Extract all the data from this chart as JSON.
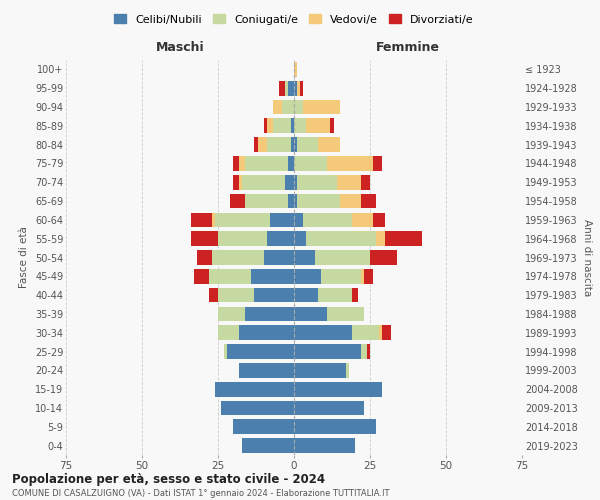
{
  "age_groups": [
    "0-4",
    "5-9",
    "10-14",
    "15-19",
    "20-24",
    "25-29",
    "30-34",
    "35-39",
    "40-44",
    "45-49",
    "50-54",
    "55-59",
    "60-64",
    "65-69",
    "70-74",
    "75-79",
    "80-84",
    "85-89",
    "90-94",
    "95-99",
    "100+"
  ],
  "birth_years": [
    "2019-2023",
    "2014-2018",
    "2009-2013",
    "2004-2008",
    "1999-2003",
    "1994-1998",
    "1989-1993",
    "1984-1988",
    "1979-1983",
    "1974-1978",
    "1969-1973",
    "1964-1968",
    "1959-1963",
    "1954-1958",
    "1949-1953",
    "1944-1948",
    "1939-1943",
    "1934-1938",
    "1929-1933",
    "1924-1928",
    "≤ 1923"
  ],
  "maschi": {
    "celibe": [
      17,
      20,
      24,
      26,
      18,
      22,
      18,
      16,
      13,
      14,
      10,
      9,
      8,
      2,
      3,
      2,
      1,
      1,
      0,
      2,
      0
    ],
    "coniugato": [
      0,
      0,
      0,
      0,
      0,
      1,
      7,
      9,
      12,
      14,
      17,
      16,
      18,
      14,
      14,
      14,
      8,
      6,
      4,
      1,
      0
    ],
    "vedovo": [
      0,
      0,
      0,
      0,
      0,
      0,
      0,
      0,
      0,
      0,
      0,
      0,
      1,
      0,
      1,
      2,
      3,
      2,
      3,
      0,
      0
    ],
    "divorziato": [
      0,
      0,
      0,
      0,
      0,
      0,
      0,
      0,
      3,
      5,
      5,
      9,
      7,
      5,
      2,
      2,
      1,
      1,
      0,
      2,
      0
    ]
  },
  "femmine": {
    "nubile": [
      20,
      27,
      23,
      29,
      17,
      22,
      19,
      11,
      8,
      9,
      7,
      4,
      3,
      1,
      1,
      0,
      1,
      0,
      0,
      1,
      0
    ],
    "coniugata": [
      0,
      0,
      0,
      0,
      1,
      2,
      9,
      12,
      11,
      13,
      18,
      23,
      16,
      14,
      13,
      11,
      7,
      4,
      3,
      0,
      0
    ],
    "vedova": [
      0,
      0,
      0,
      0,
      0,
      0,
      1,
      0,
      0,
      1,
      0,
      3,
      7,
      7,
      8,
      15,
      7,
      8,
      12,
      1,
      1
    ],
    "divorziata": [
      0,
      0,
      0,
      0,
      0,
      1,
      3,
      0,
      2,
      3,
      9,
      12,
      4,
      5,
      3,
      3,
      0,
      1,
      0,
      1,
      0
    ]
  },
  "colors": {
    "celibe": "#4a7fae",
    "coniugato": "#c5d9a0",
    "vedovo": "#f5c97a",
    "divorziato": "#cc2222"
  },
  "xlim": 75,
  "title": "Popolazione per età, sesso e stato civile - 2024",
  "subtitle": "COMUNE DI CASALZUIGNO (VA) - Dati ISTAT 1° gennaio 2024 - Elaborazione TUTTITALIA.IT",
  "ylabel_left": "Fasce di età",
  "ylabel_right": "Anni di nascita",
  "xlabel_left": "Maschi",
  "xlabel_right": "Femmine",
  "legend_labels": [
    "Celibi/Nubili",
    "Coniugati/e",
    "Vedovi/e",
    "Divorziati/e"
  ],
  "bg_color": "#f8f8f8",
  "grid_color": "#cccccc"
}
